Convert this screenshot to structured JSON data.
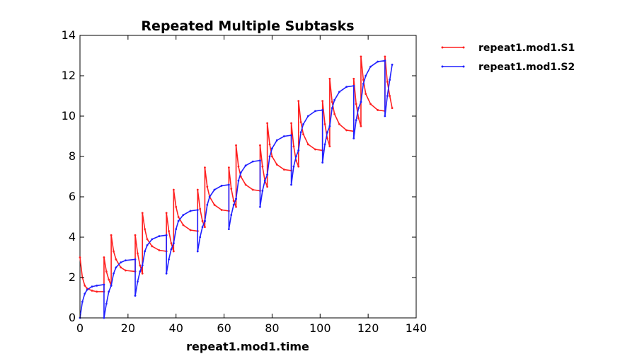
{
  "chart_data": {
    "type": "line",
    "title": "Repeated Multiple Subtasks",
    "xlabel": "repeat1.mod1.time",
    "ylabel": "",
    "xlim": [
      0,
      140
    ],
    "ylim": [
      0,
      14
    ],
    "x_ticks": [
      "0",
      "20",
      "40",
      "60",
      "80",
      "100",
      "120",
      "140"
    ],
    "y_ticks": [
      "0",
      "2",
      "4",
      "6",
      "8",
      "10",
      "12",
      "14"
    ],
    "grid": false,
    "legend_position": "outside-right",
    "series": [
      {
        "name": "repeat1.mod1.S1",
        "color": "#ff2020",
        "points": [
          [
            0,
            3.0
          ],
          [
            1,
            2.0
          ],
          [
            2,
            1.6
          ],
          [
            3,
            1.45
          ],
          [
            5,
            1.35
          ],
          [
            7,
            1.3
          ],
          [
            10,
            1.3
          ],
          [
            10,
            3.0
          ],
          [
            11,
            2.3
          ],
          [
            12,
            1.9
          ],
          [
            13,
            1.6
          ],
          [
            13,
            4.1
          ],
          [
            14,
            3.3
          ],
          [
            15,
            2.9
          ],
          [
            17,
            2.5
          ],
          [
            19,
            2.35
          ],
          [
            23,
            2.3
          ],
          [
            23,
            4.1
          ],
          [
            24,
            3.2
          ],
          [
            25,
            2.6
          ],
          [
            26,
            2.2
          ],
          [
            26,
            5.2
          ],
          [
            27,
            4.4
          ],
          [
            28,
            3.9
          ],
          [
            30,
            3.55
          ],
          [
            33,
            3.35
          ],
          [
            36,
            3.3
          ],
          [
            36,
            5.2
          ],
          [
            37,
            4.3
          ],
          [
            38,
            3.7
          ],
          [
            39,
            3.3
          ],
          [
            39,
            6.35
          ],
          [
            40,
            5.5
          ],
          [
            41,
            5.0
          ],
          [
            43,
            4.6
          ],
          [
            46,
            4.35
          ],
          [
            49,
            4.3
          ],
          [
            49,
            6.35
          ],
          [
            50,
            5.4
          ],
          [
            51,
            4.8
          ],
          [
            52,
            4.5
          ],
          [
            52,
            7.45
          ],
          [
            53,
            6.5
          ],
          [
            54,
            6.0
          ],
          [
            56,
            5.6
          ],
          [
            59,
            5.35
          ],
          [
            62,
            5.3
          ],
          [
            62,
            7.45
          ],
          [
            63,
            6.4
          ],
          [
            64,
            5.8
          ],
          [
            65,
            5.5
          ],
          [
            65,
            8.55
          ],
          [
            66,
            7.5
          ],
          [
            67,
            7.0
          ],
          [
            69,
            6.6
          ],
          [
            72,
            6.35
          ],
          [
            75,
            6.3
          ],
          [
            75,
            8.55
          ],
          [
            76,
            7.5
          ],
          [
            77,
            6.8
          ],
          [
            78,
            6.5
          ],
          [
            78,
            9.65
          ],
          [
            79,
            8.6
          ],
          [
            80,
            8.0
          ],
          [
            82,
            7.6
          ],
          [
            85,
            7.35
          ],
          [
            88,
            7.3
          ],
          [
            88,
            9.65
          ],
          [
            89,
            8.5
          ],
          [
            90,
            7.8
          ],
          [
            91,
            7.5
          ],
          [
            91,
            10.75
          ],
          [
            92,
            9.7
          ],
          [
            93,
            9.1
          ],
          [
            95,
            8.6
          ],
          [
            98,
            8.35
          ],
          [
            101,
            8.3
          ],
          [
            101,
            10.75
          ],
          [
            102,
            9.6
          ],
          [
            103,
            8.9
          ],
          [
            104,
            8.5
          ],
          [
            104,
            11.85
          ],
          [
            105,
            10.7
          ],
          [
            106,
            10.1
          ],
          [
            108,
            9.6
          ],
          [
            111,
            9.3
          ],
          [
            114,
            9.25
          ],
          [
            114,
            11.85
          ],
          [
            115,
            10.6
          ],
          [
            116,
            9.9
          ],
          [
            117,
            9.5
          ],
          [
            117,
            12.95
          ],
          [
            118,
            11.8
          ],
          [
            119,
            11.1
          ],
          [
            121,
            10.6
          ],
          [
            124,
            10.3
          ],
          [
            127,
            10.25
          ],
          [
            127,
            12.95
          ],
          [
            128,
            11.7
          ],
          [
            129,
            11.0
          ],
          [
            130,
            10.4
          ]
        ]
      },
      {
        "name": "repeat1.mod1.S2",
        "color": "#2020ff",
        "points": [
          [
            0,
            0.0
          ],
          [
            1,
            0.8
          ],
          [
            2,
            1.2
          ],
          [
            3,
            1.4
          ],
          [
            5,
            1.55
          ],
          [
            7,
            1.6
          ],
          [
            10,
            1.65
          ],
          [
            10,
            0.0
          ],
          [
            11,
            0.7
          ],
          [
            12,
            1.3
          ],
          [
            13,
            1.6
          ],
          [
            13,
            1.6
          ],
          [
            14,
            2.2
          ],
          [
            15,
            2.5
          ],
          [
            17,
            2.75
          ],
          [
            19,
            2.85
          ],
          [
            23,
            2.9
          ],
          [
            23,
            1.1
          ],
          [
            24,
            1.8
          ],
          [
            25,
            2.3
          ],
          [
            26,
            2.6
          ],
          [
            26,
            2.6
          ],
          [
            27,
            3.3
          ],
          [
            28,
            3.6
          ],
          [
            30,
            3.9
          ],
          [
            33,
            4.05
          ],
          [
            36,
            4.1
          ],
          [
            36,
            2.2
          ],
          [
            37,
            2.9
          ],
          [
            38,
            3.4
          ],
          [
            39,
            3.7
          ],
          [
            39,
            3.7
          ],
          [
            40,
            4.4
          ],
          [
            41,
            4.8
          ],
          [
            43,
            5.1
          ],
          [
            46,
            5.3
          ],
          [
            49,
            5.35
          ],
          [
            49,
            3.3
          ],
          [
            50,
            4.0
          ],
          [
            51,
            4.5
          ],
          [
            52,
            4.8
          ],
          [
            52,
            4.8
          ],
          [
            53,
            5.6
          ],
          [
            54,
            6.0
          ],
          [
            56,
            6.35
          ],
          [
            59,
            6.55
          ],
          [
            62,
            6.6
          ],
          [
            62,
            4.4
          ],
          [
            63,
            5.1
          ],
          [
            64,
            5.6
          ],
          [
            65,
            5.9
          ],
          [
            65,
            5.9
          ],
          [
            66,
            6.8
          ],
          [
            67,
            7.2
          ],
          [
            69,
            7.55
          ],
          [
            72,
            7.75
          ],
          [
            75,
            7.8
          ],
          [
            75,
            5.5
          ],
          [
            76,
            6.3
          ],
          [
            77,
            6.8
          ],
          [
            78,
            7.1
          ],
          [
            78,
            7.1
          ],
          [
            79,
            8.0
          ],
          [
            80,
            8.4
          ],
          [
            82,
            8.8
          ],
          [
            85,
            9.0
          ],
          [
            88,
            9.05
          ],
          [
            88,
            6.6
          ],
          [
            89,
            7.5
          ],
          [
            90,
            8.0
          ],
          [
            91,
            8.3
          ],
          [
            91,
            8.3
          ],
          [
            92,
            9.2
          ],
          [
            93,
            9.6
          ],
          [
            95,
            10.0
          ],
          [
            98,
            10.25
          ],
          [
            101,
            10.3
          ],
          [
            101,
            7.7
          ],
          [
            102,
            8.6
          ],
          [
            103,
            9.2
          ],
          [
            104,
            9.5
          ],
          [
            104,
            9.5
          ],
          [
            105,
            10.4
          ],
          [
            106,
            10.8
          ],
          [
            108,
            11.2
          ],
          [
            111,
            11.45
          ],
          [
            114,
            11.5
          ],
          [
            114,
            8.9
          ],
          [
            115,
            9.8
          ],
          [
            116,
            10.4
          ],
          [
            117,
            10.7
          ],
          [
            117,
            10.7
          ],
          [
            118,
            11.6
          ],
          [
            119,
            12.0
          ],
          [
            121,
            12.45
          ],
          [
            124,
            12.7
          ],
          [
            127,
            12.75
          ],
          [
            127,
            10.0
          ],
          [
            128,
            11.0
          ],
          [
            129,
            11.8
          ],
          [
            130,
            12.55
          ]
        ]
      }
    ]
  }
}
